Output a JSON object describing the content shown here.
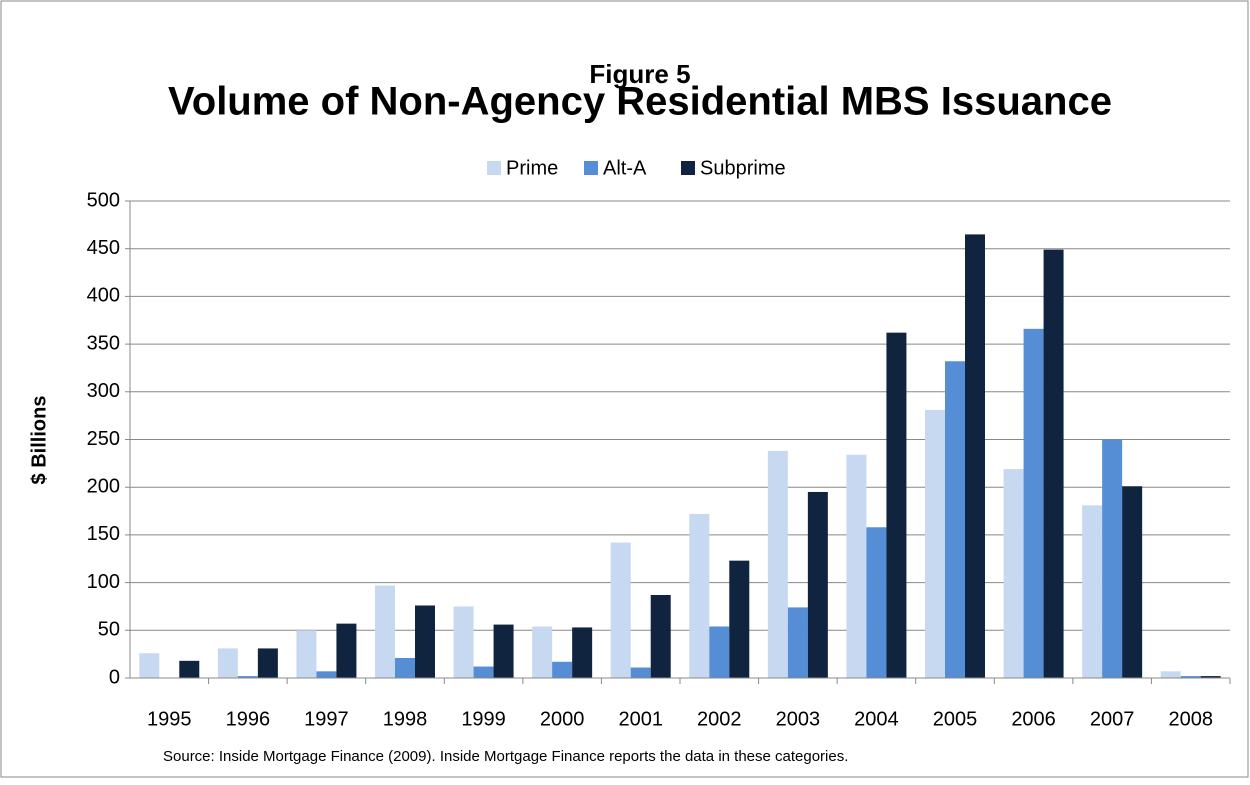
{
  "chart_data": {
    "type": "bar",
    "figure_label": "Figure 5",
    "title": "Volume of Non-Agency Residential MBS Issuance",
    "y_label": "$ Billions",
    "source": "Source:  Inside Mortgage Finance (2009).  Inside Mortgage Finance reports the data in these categories.",
    "categories": [
      "1995",
      "1996",
      "1997",
      "1998",
      "1999",
      "2000",
      "2001",
      "2002",
      "2003",
      "2004",
      "2005",
      "2006",
      "2007",
      "2008"
    ],
    "series": [
      {
        "name": "Prime",
        "color": "#c6d9f1",
        "values": [
          26,
          31,
          50,
          97,
          75,
          54,
          142,
          172,
          238,
          234,
          281,
          219,
          181,
          7
        ]
      },
      {
        "name": "Alt-A",
        "color": "#558ed5",
        "values": [
          0,
          2,
          7,
          21,
          12,
          17,
          11,
          54,
          74,
          158,
          332,
          366,
          250,
          2
        ]
      },
      {
        "name": "Subprime",
        "color": "#10243f",
        "values": [
          18,
          31,
          57,
          76,
          56,
          53,
          87,
          123,
          195,
          362,
          465,
          449,
          201,
          2
        ]
      }
    ],
    "ylim": [
      0,
      500
    ],
    "yticks": [
      0,
      50,
      100,
      150,
      200,
      250,
      300,
      350,
      400,
      450,
      500
    ],
    "grid": true,
    "legend": "top"
  }
}
